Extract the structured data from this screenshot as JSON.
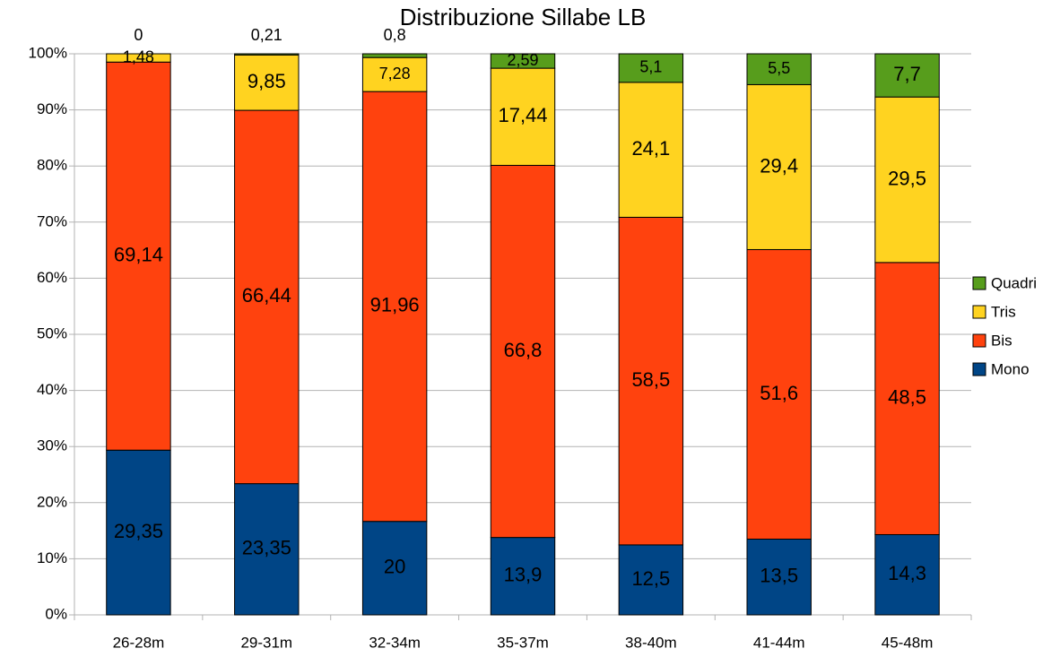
{
  "chart_data": {
    "type": "bar",
    "stack": "percent",
    "title": "Distribuzione Sillabe LB",
    "categories": [
      "26-28m",
      "29-31m",
      "32-34m",
      "35-37m",
      "38-40m",
      "41-44m",
      "45-48m"
    ],
    "series": [
      {
        "name": "Mono",
        "color": "#004586",
        "values": [
          29.35,
          23.35,
          20,
          13.9,
          12.5,
          13.5,
          14.3
        ],
        "value_labels": [
          "29,35",
          "23,35",
          "20",
          "13,9",
          "12,5",
          "13,5",
          "14,3"
        ]
      },
      {
        "name": "Bis",
        "color": "#ff420e",
        "values": [
          69.14,
          66.44,
          91.96,
          66.8,
          58.5,
          51.6,
          48.5
        ],
        "value_labels": [
          "69,14",
          "66,44",
          "91,96",
          "66,8",
          "58,5",
          "51,6",
          "48,5"
        ]
      },
      {
        "name": "Tris",
        "color": "#ffd320",
        "values": [
          1.48,
          9.85,
          7.28,
          17.44,
          24.1,
          29.4,
          29.5
        ],
        "value_labels": [
          "1,48",
          "9,85",
          "7,28",
          "17,44",
          "24,1",
          "29,4",
          "29,5"
        ]
      },
      {
        "name": "Quadri",
        "color": "#579d1c",
        "values": [
          0,
          0.21,
          0.8,
          2.59,
          5.1,
          5.5,
          7.7
        ],
        "value_labels": [
          "0",
          "0,21",
          "0,8",
          "2,59",
          "5,1",
          "5,5",
          "7,7"
        ]
      }
    ],
    "ylim": [
      0,
      100
    ],
    "yticks": [
      {
        "value": 0,
        "label": "0%"
      },
      {
        "value": 10,
        "label": "10%"
      },
      {
        "value": 20,
        "label": "20%"
      },
      {
        "value": 30,
        "label": "30%"
      },
      {
        "value": 40,
        "label": "40%"
      },
      {
        "value": 50,
        "label": "50%"
      },
      {
        "value": 60,
        "label": "60%"
      },
      {
        "value": 70,
        "label": "70%"
      },
      {
        "value": 80,
        "label": "80%"
      },
      {
        "value": 90,
        "label": "90%"
      },
      {
        "value": 100,
        "label": "100%"
      }
    ],
    "grid": true,
    "legend": "right"
  }
}
